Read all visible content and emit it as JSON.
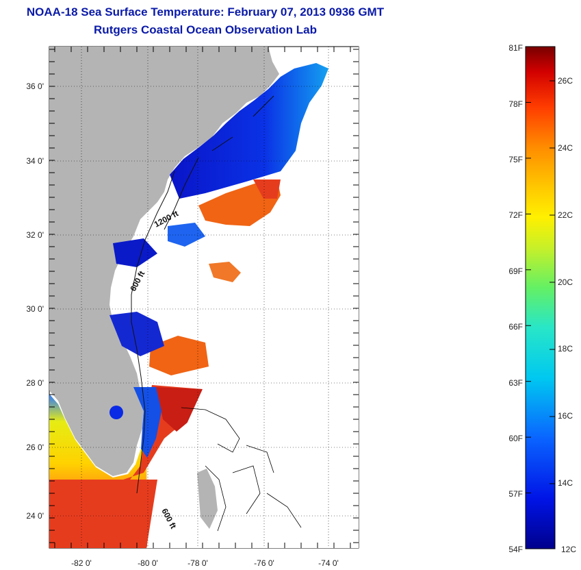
{
  "header": {
    "title": "NOAA-18 Sea Surface Temperature:  February 07, 2013 0936 GMT",
    "subtitle": "Rutgers Coastal Ocean Observation Lab"
  },
  "map": {
    "lat_labels": [
      "36 0'",
      "34 0'",
      "32 0'",
      "30 0'",
      "28 0'",
      "26 0'",
      "24 0'"
    ],
    "lon_labels": [
      "-82 0'",
      "-80 0'",
      "-78 0'",
      "-76 0'",
      "-74 0'"
    ],
    "contour_labels": [
      "1200 ft",
      "600 ft",
      "600 ft"
    ],
    "colors": {
      "land": "#b4b4b4",
      "cloud": "#ffffff",
      "cold": "#0a1ad2",
      "warm": "#e23214"
    }
  },
  "colorbar": {
    "fahrenheit": [
      "81F",
      "78F",
      "75F",
      "72F",
      "69F",
      "66F",
      "63F",
      "60F",
      "57F",
      "54F"
    ],
    "celsius": [
      "26C",
      "24C",
      "22C",
      "20C",
      "18C",
      "16C",
      "14C",
      "12C"
    ],
    "range_f": [
      54,
      81
    ],
    "range_c": [
      12,
      27
    ]
  }
}
